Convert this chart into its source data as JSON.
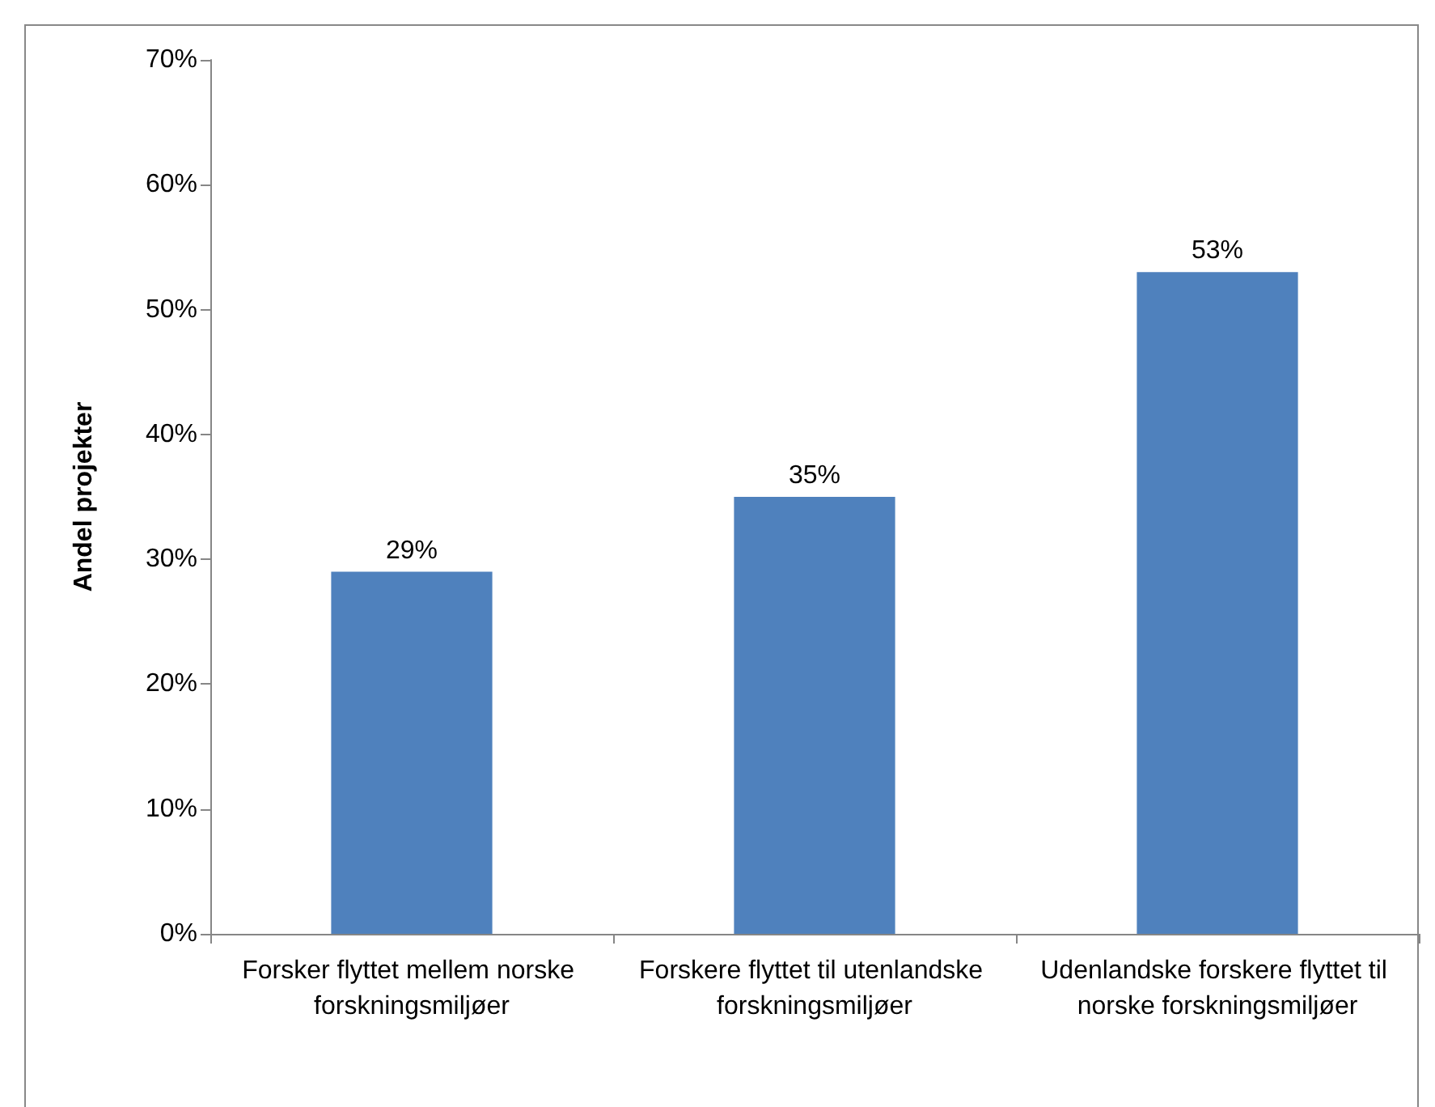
{
  "chart_data": {
    "type": "bar",
    "ylabel": "Andel projekter",
    "categories": [
      "Forsker flyttet mellem norske forskningsmiljøer",
      "Forskere flyttet til utenlandske forskningsmiljøer",
      "Udenlandske forskere flyttet til norske forskningsmiljøer"
    ],
    "values": [
      29,
      35,
      53
    ],
    "color": "#4f81bd",
    "value_labels": [
      "29%",
      "35%",
      "53%"
    ],
    "ylim": [
      0,
      70
    ],
    "yticks": [
      {
        "value": 0,
        "label": "0%"
      },
      {
        "value": 10,
        "label": "10%"
      },
      {
        "value": 20,
        "label": "20%"
      },
      {
        "value": 30,
        "label": "30%"
      },
      {
        "value": 40,
        "label": "40%"
      },
      {
        "value": 50,
        "label": "50%"
      },
      {
        "value": 60,
        "label": "60%"
      },
      {
        "value": 70,
        "label": "70%"
      }
    ],
    "grid": false
  }
}
